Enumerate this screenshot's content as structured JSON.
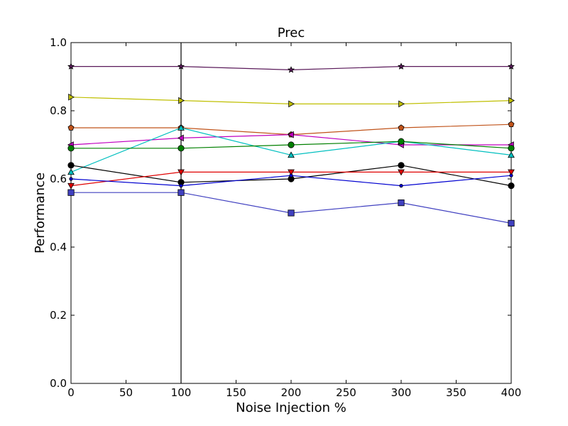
{
  "chart_data": {
    "type": "line",
    "title": "Prec",
    "xlabel": "Noise Injection %",
    "ylabel": "Performance",
    "xlim": [
      0,
      400
    ],
    "ylim": [
      0.0,
      1.0
    ],
    "x_ticks": [
      0,
      50,
      100,
      150,
      200,
      250,
      300,
      350,
      400
    ],
    "x_tick_labels": [
      "0",
      "50",
      "100",
      "150",
      "200",
      "250",
      "300",
      "350",
      "400"
    ],
    "y_ticks": [
      0.0,
      0.2,
      0.4,
      0.6,
      0.8,
      1.0
    ],
    "y_tick_labels": [
      "0.0",
      "0.2",
      "0.4",
      "0.6",
      "0.8",
      "1.0"
    ],
    "vline_x": 100,
    "grid": false,
    "legend": "none",
    "x": [
      0,
      100,
      200,
      300,
      400
    ],
    "series": [
      {
        "values": [
          0.93,
          0.93,
          0.92,
          0.93,
          0.93
        ],
        "color": "#5a1a5a",
        "marker": "star"
      },
      {
        "values": [
          0.84,
          0.83,
          0.82,
          0.82,
          0.83
        ],
        "color": "#bfbf00",
        "marker": "triangle-right"
      },
      {
        "values": [
          0.75,
          0.75,
          0.73,
          0.75,
          0.76
        ],
        "color": "#c0531a",
        "marker": "pentagon"
      },
      {
        "values": [
          0.7,
          0.72,
          0.73,
          0.7,
          0.7
        ],
        "color": "#bf00bf",
        "marker": "triangle-left"
      },
      {
        "values": [
          0.62,
          0.75,
          0.67,
          0.71,
          0.67
        ],
        "color": "#00bfbf",
        "marker": "triangle-up"
      },
      {
        "values": [
          0.69,
          0.69,
          0.7,
          0.71,
          0.69
        ],
        "color": "#008000",
        "marker": "circle"
      },
      {
        "values": [
          0.64,
          0.59,
          0.6,
          0.64,
          0.58
        ],
        "color": "#000000",
        "marker": "circle"
      },
      {
        "values": [
          0.58,
          0.62,
          0.62,
          0.62,
          0.62
        ],
        "color": "#e00000",
        "marker": "triangle-down"
      },
      {
        "values": [
          0.6,
          0.58,
          0.61,
          0.58,
          0.61
        ],
        "color": "#0000d0",
        "marker": "dot"
      },
      {
        "values": [
          0.56,
          0.56,
          0.5,
          0.53,
          0.47
        ],
        "color": "#4040c0",
        "marker": "square"
      }
    ]
  }
}
